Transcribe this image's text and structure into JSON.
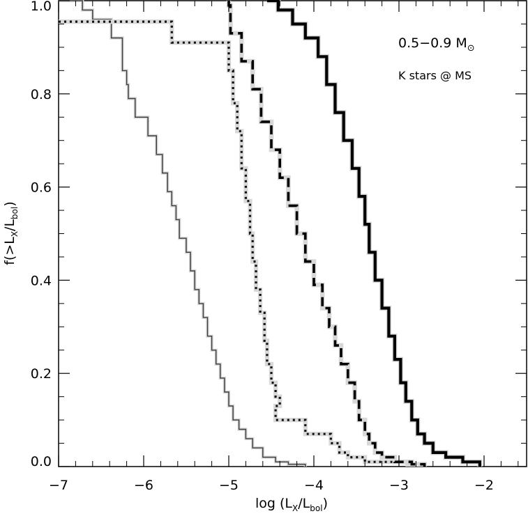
{
  "chart_data": {
    "type": "line",
    "chart_kind": "cumulative step distribution",
    "xlabel": "log (L",
    "xlabel_sub1": "X",
    "xlabel_mid": "/L",
    "xlabel_sub2": "bol",
    "xlabel_end": ")",
    "ylabel": "f(>L",
    "ylabel_sub1": "X",
    "ylabel_mid": "/L",
    "ylabel_sub2": "bol",
    "ylabel_end": ")",
    "xlim": [
      -7.0,
      -1.5
    ],
    "ylim": [
      0.0,
      1.0
    ],
    "x_ticks": [
      -7,
      -6,
      -5,
      -4,
      -3,
      -2
    ],
    "x_tick_labels": [
      "−7",
      "−6",
      "−5",
      "−4",
      "−3",
      "−2"
    ],
    "y_ticks": [
      0.0,
      0.2,
      0.4,
      0.6,
      0.8,
      1.0
    ],
    "y_tick_labels": [
      "0.0",
      "0.2",
      "0.4",
      "0.6",
      "0.8",
      "1.0"
    ],
    "grid": false,
    "annotations": {
      "mass_range": "0.5−0.9 M",
      "sun_symbol": "⊙",
      "stage": "K stars @ MS"
    },
    "series": [
      {
        "style": "thin",
        "color": "#3a3a3a",
        "x": [
          -7.0,
          -6.72,
          -6.72,
          -6.6,
          -6.6,
          -6.38,
          -6.38,
          -6.25,
          -6.25,
          -6.2,
          -6.2,
          -6.18,
          -6.18,
          -6.1,
          -6.1,
          -5.95,
          -5.95,
          -5.85,
          -5.85,
          -5.78,
          -5.78,
          -5.72,
          -5.72,
          -5.67,
          -5.67,
          -5.62,
          -5.62,
          -5.58,
          -5.58,
          -5.5,
          -5.5,
          -5.45,
          -5.45,
          -5.4,
          -5.4,
          -5.35,
          -5.35,
          -5.3,
          -5.3,
          -5.25,
          -5.25,
          -5.2,
          -5.2,
          -5.15,
          -5.15,
          -5.1,
          -5.1,
          -5.05,
          -5.05,
          -5.0,
          -5.0,
          -4.95,
          -4.95,
          -4.88,
          -4.88,
          -4.8,
          -4.8,
          -4.72,
          -4.72,
          -4.6,
          -4.6,
          -4.45,
          -4.45,
          -4.3,
          -4.3,
          -4.1,
          -4.1
        ],
        "y": [
          1.0,
          1.0,
          0.98,
          0.98,
          0.96,
          0.96,
          0.92,
          0.92,
          0.85,
          0.85,
          0.82,
          0.82,
          0.79,
          0.79,
          0.75,
          0.75,
          0.71,
          0.71,
          0.67,
          0.67,
          0.63,
          0.63,
          0.59,
          0.59,
          0.56,
          0.56,
          0.53,
          0.53,
          0.49,
          0.49,
          0.46,
          0.46,
          0.42,
          0.42,
          0.38,
          0.38,
          0.35,
          0.35,
          0.32,
          0.32,
          0.28,
          0.28,
          0.25,
          0.25,
          0.22,
          0.22,
          0.19,
          0.19,
          0.16,
          0.16,
          0.13,
          0.13,
          0.1,
          0.1,
          0.08,
          0.08,
          0.06,
          0.06,
          0.04,
          0.04,
          0.02,
          0.02,
          0.01,
          0.01,
          0.005,
          0.005,
          0.0
        ]
      },
      {
        "style": "dotted",
        "color": "#111111",
        "x": [
          -7.0,
          -5.67,
          -5.67,
          -5.0,
          -5.0,
          -4.95,
          -4.95,
          -4.9,
          -4.9,
          -4.85,
          -4.85,
          -4.8,
          -4.8,
          -4.75,
          -4.75,
          -4.72,
          -4.72,
          -4.68,
          -4.68,
          -4.63,
          -4.63,
          -4.58,
          -4.58,
          -4.55,
          -4.55,
          -4.5,
          -4.5,
          -4.45,
          -4.45,
          -4.4,
          -4.4,
          -4.45,
          -4.45,
          -4.1,
          -4.1,
          -3.8,
          -3.8,
          -3.7,
          -3.7,
          -3.6,
          -3.6,
          -3.4,
          -3.4,
          -2.9,
          -2.9
        ],
        "y": [
          0.955,
          0.955,
          0.91,
          0.91,
          0.85,
          0.85,
          0.78,
          0.78,
          0.72,
          0.72,
          0.64,
          0.64,
          0.57,
          0.57,
          0.5,
          0.5,
          0.44,
          0.44,
          0.38,
          0.38,
          0.33,
          0.33,
          0.27,
          0.27,
          0.22,
          0.22,
          0.18,
          0.18,
          0.15,
          0.15,
          0.13,
          0.13,
          0.1,
          0.1,
          0.07,
          0.07,
          0.05,
          0.05,
          0.03,
          0.03,
          0.02,
          0.02,
          0.01,
          0.01,
          0.0
        ]
      },
      {
        "style": "dashed",
        "color": "#000000",
        "x": [
          -5.0,
          -5.0,
          -4.98,
          -4.98,
          -4.85,
          -4.85,
          -4.72,
          -4.72,
          -4.62,
          -4.62,
          -4.5,
          -4.5,
          -4.4,
          -4.4,
          -4.3,
          -4.3,
          -4.2,
          -4.2,
          -4.1,
          -4.1,
          -4.0,
          -4.0,
          -3.9,
          -3.9,
          -3.82,
          -3.82,
          -3.75,
          -3.75,
          -3.68,
          -3.68,
          -3.6,
          -3.6,
          -3.52,
          -3.52,
          -3.47,
          -3.47,
          -3.4,
          -3.4,
          -3.35,
          -3.35,
          -3.28,
          -3.28,
          -3.2,
          -3.2,
          -3.05,
          -3.05,
          -2.85,
          -2.85,
          -2.7,
          -2.7
        ],
        "y": [
          1.0,
          0.99,
          0.99,
          0.93,
          0.93,
          0.87,
          0.87,
          0.81,
          0.81,
          0.74,
          0.74,
          0.68,
          0.68,
          0.62,
          0.62,
          0.56,
          0.56,
          0.5,
          0.5,
          0.44,
          0.44,
          0.39,
          0.39,
          0.34,
          0.34,
          0.3,
          0.3,
          0.26,
          0.26,
          0.22,
          0.22,
          0.18,
          0.18,
          0.14,
          0.14,
          0.1,
          0.1,
          0.07,
          0.07,
          0.05,
          0.05,
          0.03,
          0.03,
          0.02,
          0.02,
          0.01,
          0.01,
          0.005,
          0.005,
          0.0
        ]
      },
      {
        "style": "thick",
        "color": "#000000",
        "x": [
          -4.55,
          -4.42,
          -4.42,
          -4.25,
          -4.25,
          -4.1,
          -4.1,
          -3.95,
          -3.95,
          -3.85,
          -3.85,
          -3.75,
          -3.75,
          -3.65,
          -3.65,
          -3.55,
          -3.55,
          -3.47,
          -3.47,
          -3.4,
          -3.4,
          -3.35,
          -3.35,
          -3.28,
          -3.28,
          -3.2,
          -3.2,
          -3.12,
          -3.12,
          -3.05,
          -3.05,
          -2.98,
          -2.98,
          -2.92,
          -2.92,
          -2.85,
          -2.85,
          -2.78,
          -2.78,
          -2.7,
          -2.7,
          -2.6,
          -2.6,
          -2.45,
          -2.45,
          -2.25,
          -2.25,
          -2.05,
          -2.05
        ],
        "y": [
          1.0,
          1.0,
          0.98,
          0.98,
          0.95,
          0.95,
          0.92,
          0.92,
          0.88,
          0.88,
          0.82,
          0.82,
          0.76,
          0.76,
          0.7,
          0.7,
          0.64,
          0.64,
          0.58,
          0.58,
          0.52,
          0.52,
          0.46,
          0.46,
          0.4,
          0.4,
          0.34,
          0.34,
          0.28,
          0.28,
          0.23,
          0.23,
          0.18,
          0.18,
          0.14,
          0.14,
          0.1,
          0.1,
          0.07,
          0.07,
          0.05,
          0.05,
          0.03,
          0.03,
          0.02,
          0.02,
          0.01,
          0.01,
          0.0
        ]
      }
    ]
  }
}
